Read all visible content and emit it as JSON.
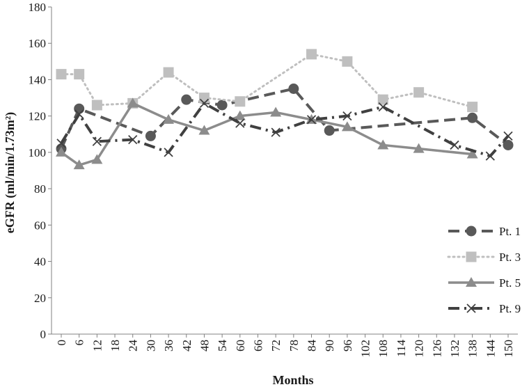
{
  "chart_data": {
    "type": "line",
    "title": "",
    "xlabel": "Months",
    "ylabel": "eGFR (ml/min/1.73m²)",
    "xlim": [
      0,
      150
    ],
    "ylim": [
      0,
      180
    ],
    "x_ticks": [
      0,
      6,
      12,
      18,
      24,
      30,
      36,
      42,
      48,
      54,
      60,
      66,
      72,
      78,
      84,
      90,
      96,
      102,
      108,
      114,
      120,
      126,
      132,
      138,
      144,
      150
    ],
    "y_ticks": [
      0,
      20,
      40,
      60,
      80,
      100,
      120,
      140,
      160,
      180
    ],
    "grid": false,
    "legend_position": "right",
    "series": [
      {
        "name": "Pt. 1",
        "color": "#595959",
        "style": "dashed",
        "marker": "circle",
        "points": [
          [
            0,
            102
          ],
          [
            6,
            124
          ],
          [
            30,
            109
          ],
          [
            42,
            129
          ],
          [
            54,
            126
          ],
          [
            78,
            135
          ],
          [
            90,
            112
          ],
          [
            138,
            119
          ],
          [
            150,
            104
          ]
        ]
      },
      {
        "name": "Pt. 3",
        "color": "#bfbfbf",
        "style": "dotted",
        "marker": "square",
        "points": [
          [
            0,
            143
          ],
          [
            6,
            143
          ],
          [
            12,
            126
          ],
          [
            24,
            127
          ],
          [
            36,
            144
          ],
          [
            48,
            130
          ],
          [
            60,
            128
          ],
          [
            84,
            154
          ],
          [
            96,
            150
          ],
          [
            108,
            129
          ],
          [
            120,
            133
          ],
          [
            138,
            125
          ]
        ]
      },
      {
        "name": "Pt. 5",
        "color": "#8c8c8c",
        "style": "solid",
        "marker": "triangle",
        "points": [
          [
            0,
            100
          ],
          [
            6,
            93
          ],
          [
            12,
            96
          ],
          [
            24,
            127
          ],
          [
            36,
            118
          ],
          [
            48,
            112
          ],
          [
            60,
            120
          ],
          [
            72,
            122
          ],
          [
            84,
            118
          ],
          [
            96,
            114
          ],
          [
            108,
            104
          ],
          [
            120,
            102
          ],
          [
            138,
            99
          ]
        ]
      },
      {
        "name": "Pt. 9",
        "color": "#404040",
        "style": "dashdot",
        "marker": "x",
        "points": [
          [
            0,
            105
          ],
          [
            6,
            121
          ],
          [
            12,
            106
          ],
          [
            24,
            107
          ],
          [
            36,
            100
          ],
          [
            48,
            127
          ],
          [
            60,
            116
          ],
          [
            72,
            111
          ],
          [
            84,
            118
          ],
          [
            96,
            120
          ],
          [
            108,
            125
          ],
          [
            132,
            104
          ],
          [
            144,
            98
          ],
          [
            150,
            109
          ]
        ]
      }
    ]
  }
}
